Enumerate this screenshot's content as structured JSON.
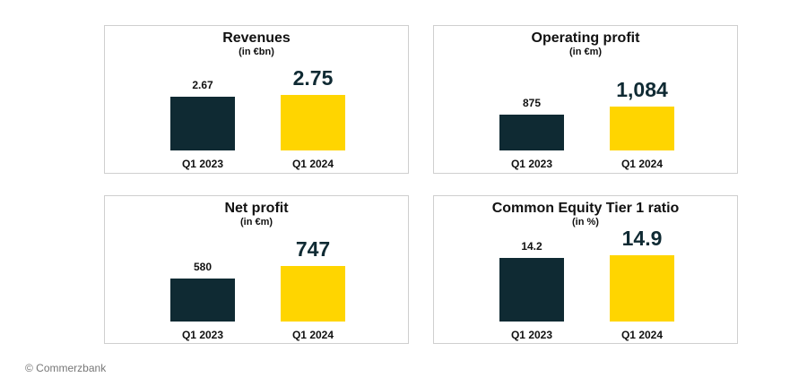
{
  "chart_data": [
    {
      "type": "bar",
      "title": "Revenues",
      "subtitle": "(in €bn)",
      "categories": [
        "Q1 2023",
        "Q1 2024"
      ],
      "values": [
        2.67,
        2.75
      ],
      "value_labels": [
        "2.67",
        "2.75"
      ],
      "colors": [
        "#0f2a33",
        "#ffd500"
      ]
    },
    {
      "type": "bar",
      "title": "Operating profit",
      "subtitle": "(in €m)",
      "categories": [
        "Q1 2023",
        "Q1 2024"
      ],
      "values": [
        875,
        1084
      ],
      "value_labels": [
        "875",
        "1,084"
      ],
      "colors": [
        "#0f2a33",
        "#ffd500"
      ]
    },
    {
      "type": "bar",
      "title": "Net profit",
      "subtitle": "(in €m)",
      "categories": [
        "Q1 2023",
        "Q1 2024"
      ],
      "values": [
        580,
        747
      ],
      "value_labels": [
        "580",
        "747"
      ],
      "colors": [
        "#0f2a33",
        "#ffd500"
      ]
    },
    {
      "type": "bar",
      "title": "Common Equity Tier 1 ratio",
      "subtitle": "(in %)",
      "categories": [
        "Q1 2023",
        "Q1 2024"
      ],
      "values": [
        14.2,
        14.9
      ],
      "value_labels": [
        "14.2",
        "14.9"
      ],
      "colors": [
        "#0f2a33",
        "#ffd500"
      ]
    }
  ],
  "footer": {
    "copyright": "© Commerzbank"
  }
}
